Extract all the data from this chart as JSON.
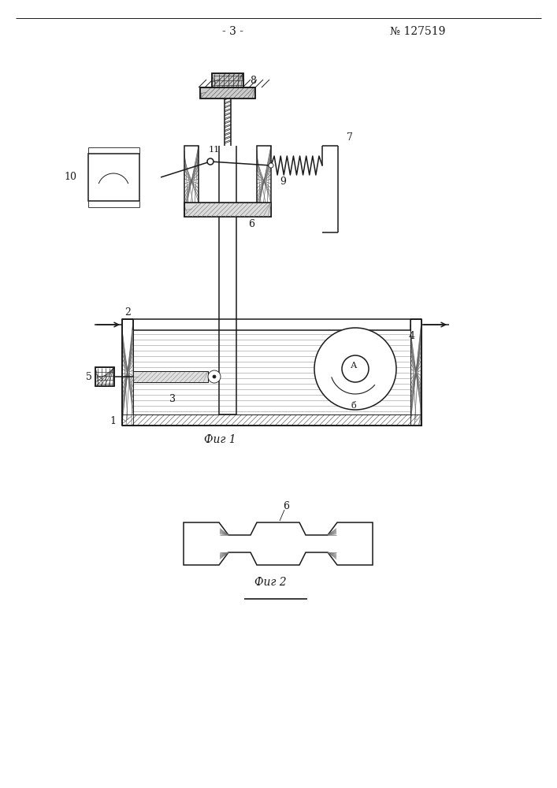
{
  "page_number": "- 3 -",
  "patent_number": "№ 127519",
  "fig1_caption": "Фиг 1",
  "fig2_caption": "Фиг 2",
  "background_color": "#ffffff",
  "line_color": "#1a1a1a",
  "lw": 1.1,
  "tlw": 0.6
}
